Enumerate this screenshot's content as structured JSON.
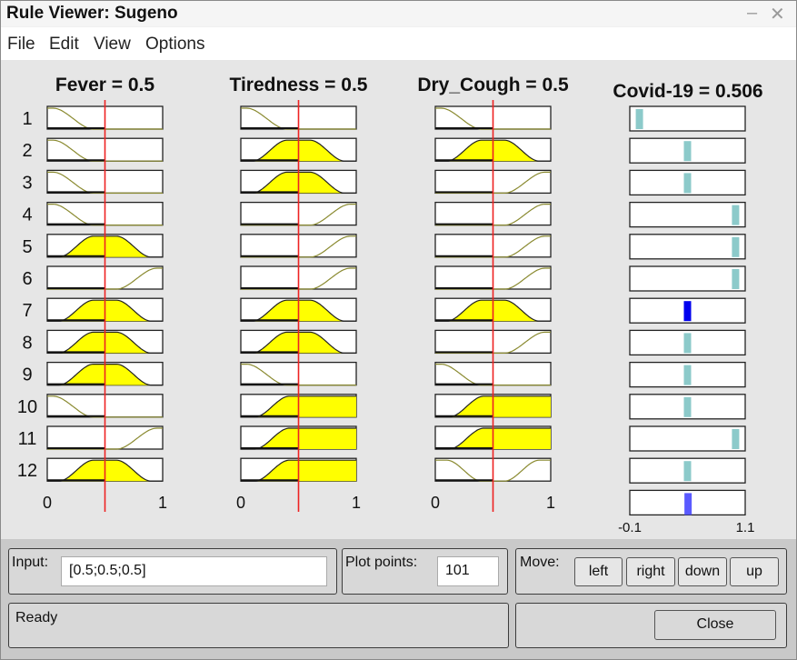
{
  "window": {
    "title": "Rule Viewer: Sugeno",
    "minimize": "–",
    "close": "✕"
  },
  "menu": [
    "File",
    "Edit",
    "View",
    "Options"
  ],
  "inputs": [
    {
      "name": "Fever = 0.5",
      "range": [
        "0",
        "1"
      ],
      "cursor": 0.5
    },
    {
      "name": "Tiredness = 0.5",
      "range": [
        "0",
        "1"
      ],
      "cursor": 0.5
    },
    {
      "name": "Dry_Cough = 0.5",
      "range": [
        "0",
        "1"
      ],
      "cursor": 0.5
    }
  ],
  "output": {
    "name": "Covid-19 = 0.506",
    "range": [
      "-0.1",
      "1.1"
    ],
    "value": 0.506
  },
  "rules": [
    {
      "n": "1",
      "mf": [
        "low",
        "low",
        "low"
      ],
      "out": 0.0
    },
    {
      "n": "2",
      "mf": [
        "low",
        "mid",
        "mid"
      ],
      "out": 0.5
    },
    {
      "n": "3",
      "mf": [
        "low",
        "mid",
        "high"
      ],
      "out": 0.5
    },
    {
      "n": "4",
      "mf": [
        "low",
        "high",
        "high"
      ],
      "out": 1.0
    },
    {
      "n": "5",
      "mf": [
        "mid",
        "high",
        "high"
      ],
      "out": 1.0
    },
    {
      "n": "6",
      "mf": [
        "high",
        "high",
        "high"
      ],
      "out": 1.0
    },
    {
      "n": "7",
      "mf": [
        "mid",
        "mid",
        "mid"
      ],
      "out": 0.5
    },
    {
      "n": "8",
      "mf": [
        "mid",
        "mid",
        "high"
      ],
      "out": 0.5
    },
    {
      "n": "9",
      "mf": [
        "mid",
        "low",
        "low"
      ],
      "out": 0.5
    },
    {
      "n": "10",
      "mf": [
        "low",
        "gt",
        "gt"
      ],
      "out": 0.5
    },
    {
      "n": "11",
      "mf": [
        "high",
        "gt",
        "gt"
      ],
      "out": 1.0
    },
    {
      "n": "12",
      "mf": [
        "mid",
        "gt",
        "notmid"
      ],
      "out": 0.5
    }
  ],
  "controls": {
    "input_label": "Input:",
    "input_value": "[0.5;0.5;0.5]",
    "plot_points_label": "Plot points:",
    "plot_points_value": "101",
    "move_label": "Move:",
    "move_buttons": [
      "left",
      "right",
      "down",
      "up"
    ],
    "status": "Ready",
    "close_label": "Close"
  },
  "colors": {
    "mf_fill": "#ffff00",
    "mf_line": "#8a8a30",
    "cursor": "#ee2222",
    "out_bar": "#8ccaca",
    "out_active": "#0000ee",
    "out_result": "#5a5aff"
  }
}
